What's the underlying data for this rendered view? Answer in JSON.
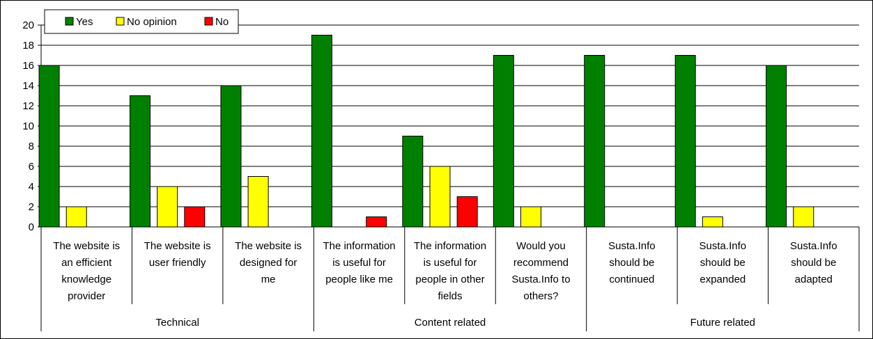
{
  "chart_data": {
    "type": "bar",
    "categories": [
      "The website is an efficient knowledge provider",
      "The website is user friendly",
      "The website is designed for me",
      "The information is useful for people like me",
      "The information is useful for people in other fields",
      "Would you recommend Susta.Info to others?",
      "Susta.Info should be continued",
      "Susta.Info should be expanded",
      "Susta.Info should be adapted"
    ],
    "category_lines": [
      [
        "The website is",
        "an efficient",
        "knowledge",
        "provider"
      ],
      [
        "The website is",
        "user friendly"
      ],
      [
        "The website is",
        "designed for",
        "me"
      ],
      [
        "The information",
        "is useful for",
        "people like me"
      ],
      [
        "The information",
        "is useful for",
        "people in other",
        "fields"
      ],
      [
        "Would you",
        "recommend",
        "Susta.Info to",
        "others?"
      ],
      [
        "Susta.Info",
        "should be",
        "continued"
      ],
      [
        "Susta.Info",
        "should be",
        "expanded"
      ],
      [
        "Susta.Info",
        "should be",
        "adapted"
      ]
    ],
    "groups": [
      {
        "label": "Technical",
        "span": [
          0,
          2
        ]
      },
      {
        "label": "Content related",
        "span": [
          3,
          5
        ]
      },
      {
        "label": "Future related",
        "span": [
          6,
          8
        ]
      }
    ],
    "series": [
      {
        "name": "Yes",
        "color": "#008000",
        "values": [
          16,
          13,
          14,
          19,
          9,
          17,
          17,
          17,
          16
        ]
      },
      {
        "name": "No opinion",
        "color": "#ffff00",
        "values": [
          2,
          4,
          5,
          0,
          6,
          2,
          0,
          1,
          2
        ]
      },
      {
        "name": "No",
        "color": "#ff0000",
        "values": [
          0,
          2,
          0,
          1,
          3,
          0,
          0,
          0,
          0
        ]
      }
    ],
    "ylim": [
      0,
      20
    ],
    "yticks": [
      0,
      2,
      4,
      6,
      8,
      10,
      12,
      14,
      16,
      18,
      20
    ],
    "grid": true,
    "legend_position": "top-left",
    "title": "",
    "xlabel": "",
    "ylabel": ""
  }
}
